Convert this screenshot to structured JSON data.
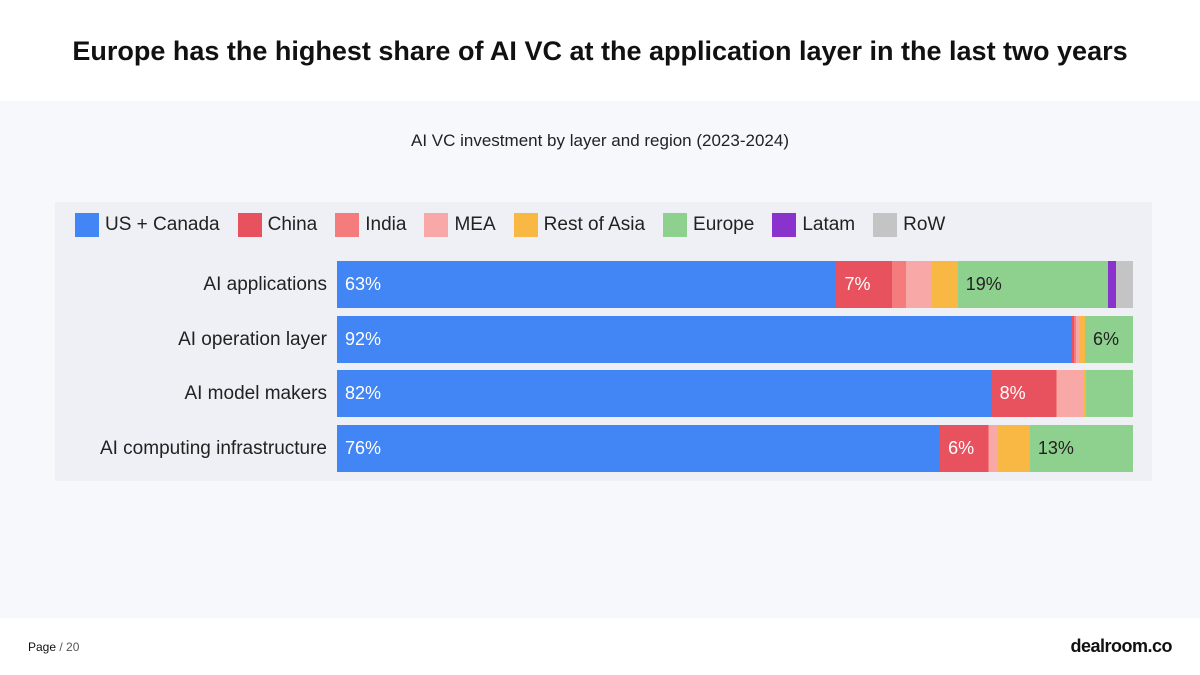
{
  "slide": {
    "title": "Europe has the highest share of AI VC at the application layer in the last two years"
  },
  "footer": {
    "page_label": "Page",
    "page_total": "/ 20",
    "brand": "dealroom.co"
  },
  "chart_data": {
    "type": "bar",
    "orientation": "horizontal",
    "stacked": true,
    "normalized_to_percent": true,
    "title": "AI VC investment by layer and region (2023-2024)",
    "xlabel": "",
    "ylabel": "",
    "xlim": [
      0,
      100
    ],
    "legend_position": "top-left",
    "categories": [
      "AI applications",
      "AI operation layer",
      "AI model makers",
      "AI computing infrastructure"
    ],
    "series": [
      {
        "name": "US + Canada",
        "color": "#4285f4",
        "label_color": "#ffffff",
        "values": [
          63,
          92,
          82,
          76
        ],
        "labels": [
          "63%",
          "92%",
          "82%",
          "76%"
        ]
      },
      {
        "name": "China",
        "color": "#e8515e",
        "label_color": "#ffffff",
        "values": [
          7,
          0.2,
          8,
          6
        ],
        "labels": [
          "7%",
          "",
          "8%",
          "6%"
        ]
      },
      {
        "name": "India",
        "color": "#f47c7c",
        "label_color": "#ffffff",
        "values": [
          1.8,
          0.3,
          0.2,
          0.2
        ],
        "labels": [
          "",
          "",
          "",
          ""
        ]
      },
      {
        "name": "MEA",
        "color": "#f9a8a8",
        "label_color": "#ffffff",
        "values": [
          3.2,
          0.4,
          3.2,
          1.1
        ],
        "labels": [
          "",
          "",
          "",
          ""
        ]
      },
      {
        "name": "Rest of Asia",
        "color": "#f9b844",
        "label_color": "#222222",
        "values": [
          3.3,
          0.7,
          0.4,
          4
        ],
        "labels": [
          "",
          "",
          "",
          ""
        ]
      },
      {
        "name": "Europe",
        "color": "#8ed18e",
        "label_color": "#222222",
        "values": [
          19,
          6,
          5.9,
          13
        ],
        "labels": [
          "19%",
          "6%",
          "",
          "13%"
        ]
      },
      {
        "name": "Latam",
        "color": "#8a33cc",
        "label_color": "#ffffff",
        "values": [
          0.9,
          0,
          0,
          0
        ],
        "labels": [
          "",
          "",
          "",
          ""
        ]
      },
      {
        "name": "RoW",
        "color": "#c4c4c4",
        "label_color": "#222222",
        "values": [
          2.2,
          0,
          0,
          0
        ],
        "labels": [
          "",
          "",
          "",
          ""
        ]
      }
    ]
  }
}
